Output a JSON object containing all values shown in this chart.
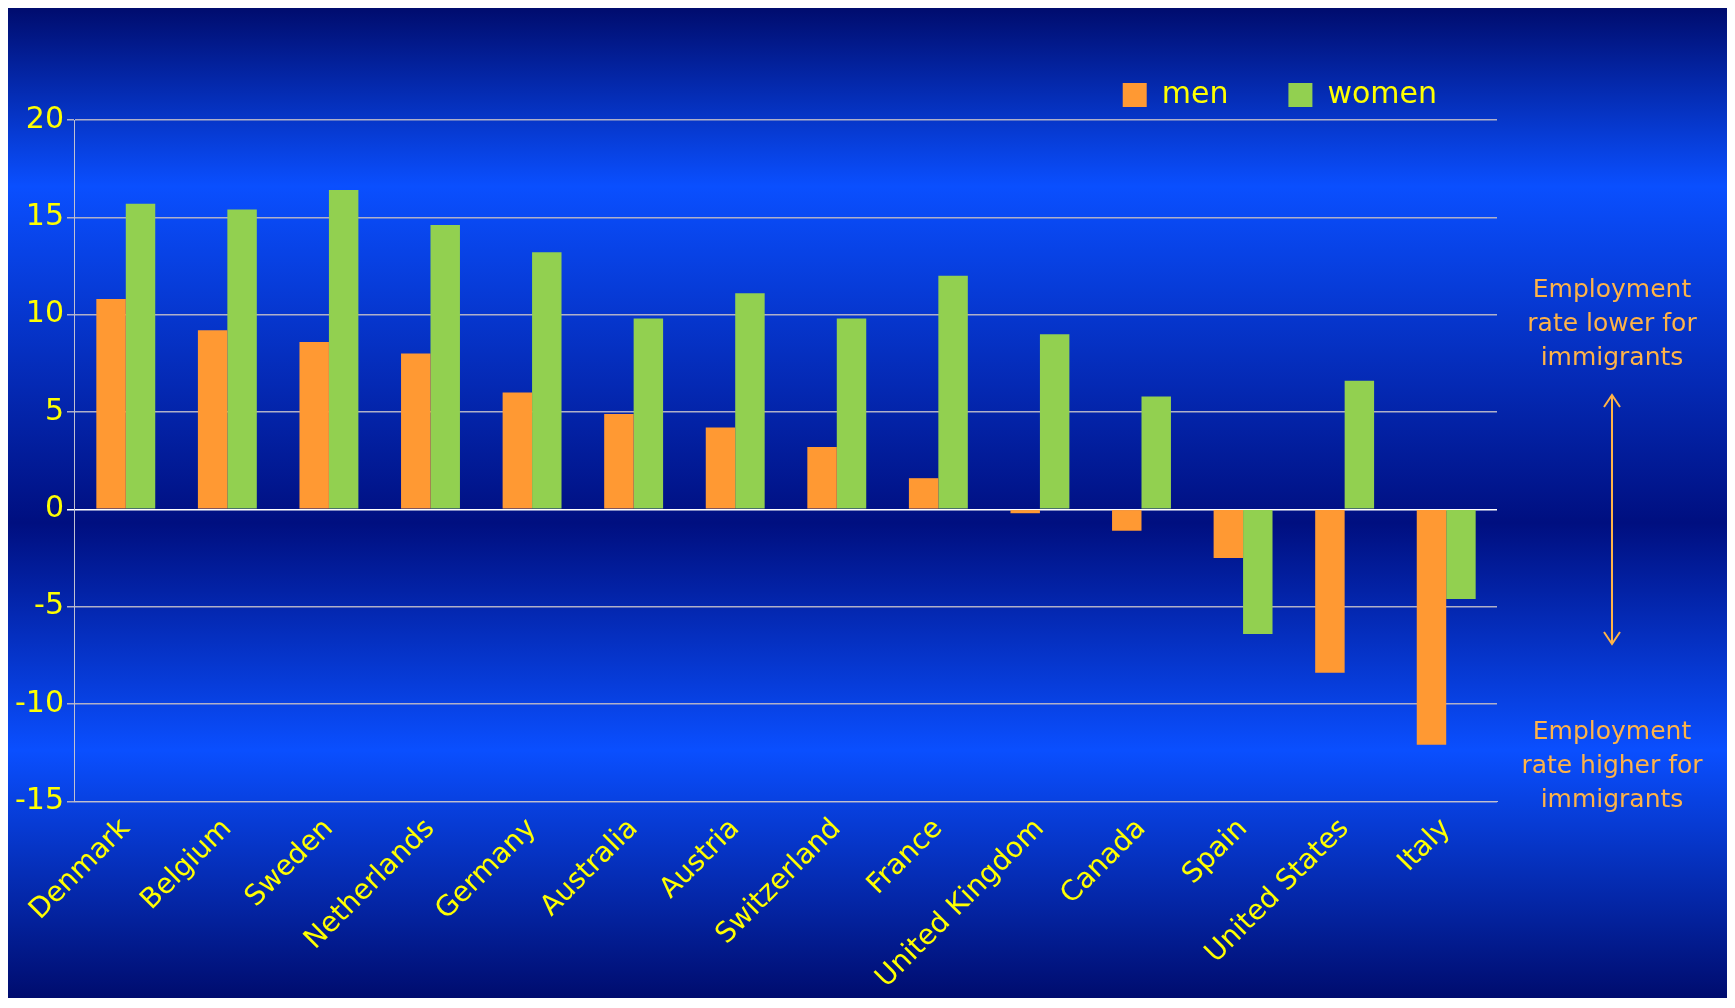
{
  "chart_data": {
    "type": "bar",
    "categories": [
      "Denmark",
      "Belgium",
      "Sweden",
      "Netherlands",
      "Germany",
      "Australia",
      "Austria",
      "Switzerland",
      "France",
      "United Kingdom",
      "Canada",
      "Spain",
      "United States",
      "Italy"
    ],
    "series": [
      {
        "name": "men",
        "color": "#ff9933",
        "values": [
          10.8,
          9.2,
          8.6,
          8.0,
          6.0,
          4.9,
          4.2,
          3.2,
          1.6,
          -0.2,
          -1.1,
          -2.5,
          -8.4,
          -12.1
        ]
      },
      {
        "name": "women",
        "color": "#92d050",
        "values": [
          15.7,
          15.4,
          16.4,
          14.6,
          13.2,
          9.8,
          11.1,
          9.8,
          12.0,
          9.0,
          5.8,
          -6.4,
          6.6,
          -4.6
        ]
      }
    ],
    "ylim": [
      -15,
      20
    ],
    "yticks": [
      -15,
      -10,
      -5,
      0,
      5,
      10,
      15,
      20
    ],
    "grid": "y",
    "legend": "top right",
    "annotations": [
      "Employment rate lower for immigrants",
      "Employment rate higher for immigrants"
    ]
  }
}
